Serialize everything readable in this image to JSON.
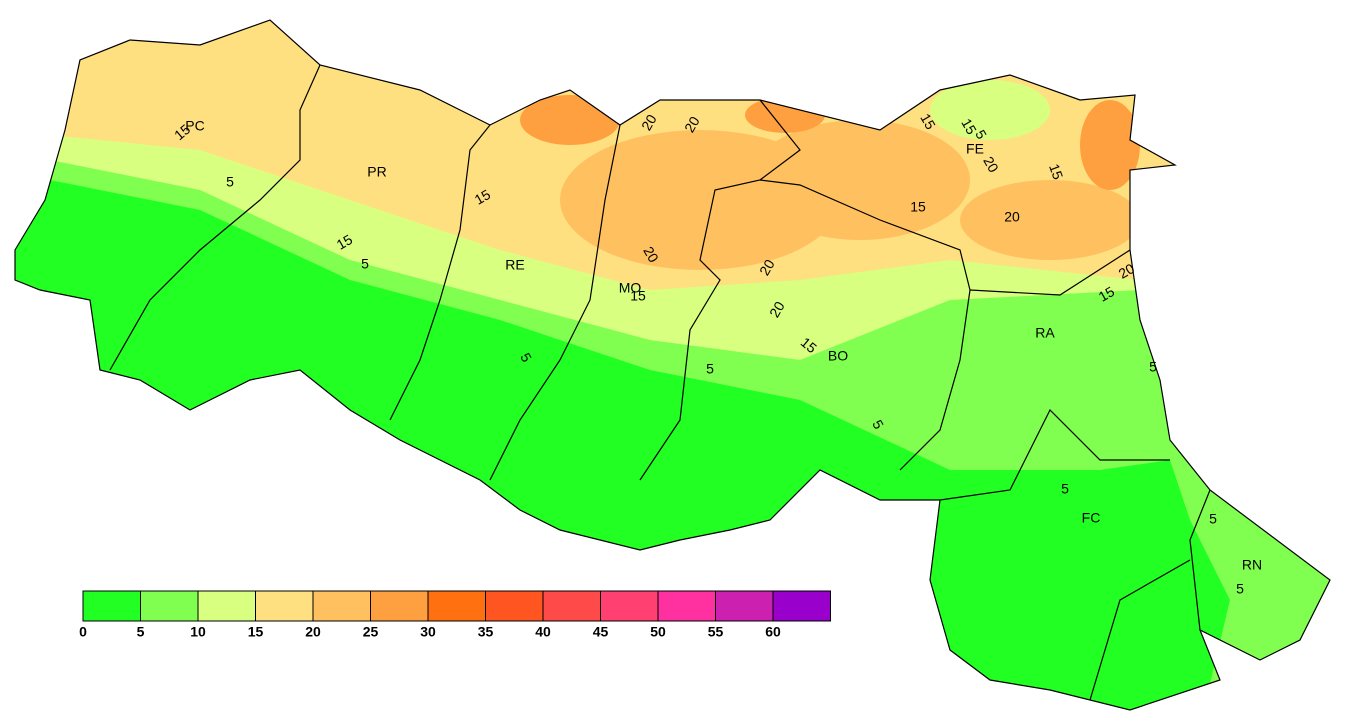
{
  "legend": {
    "ticks": [
      0,
      5,
      10,
      15,
      20,
      25,
      30,
      35,
      40,
      45,
      50,
      55,
      60
    ],
    "colors": [
      "#22ff22",
      "#80ff50",
      "#d8ff80",
      "#ffe080",
      "#ffc060",
      "#ffa040",
      "#ff7010",
      "#ff5520",
      "#ff4a4a",
      "#ff4070",
      "#ff30a0",
      "#cc20b0",
      "#9900cc"
    ]
  },
  "provinces": [
    "PC",
    "PR",
    "RE",
    "MO",
    "BO",
    "FE",
    "RA",
    "FC",
    "RN"
  ],
  "contour_labels": [
    15,
    5,
    15,
    5,
    15,
    20,
    20,
    15,
    15,
    5,
    20,
    15,
    15,
    20,
    20,
    20,
    15,
    20,
    15,
    5,
    5,
    5,
    20,
    15,
    5,
    5,
    5,
    5
  ]
}
